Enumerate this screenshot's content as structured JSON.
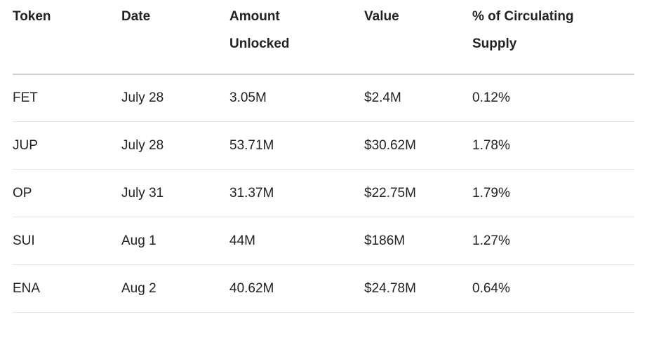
{
  "table": {
    "headers": [
      "Token",
      "Date",
      "Amount Unlocked",
      "Value",
      "% of Circulating Supply"
    ],
    "rows": [
      [
        "FET",
        "July 28",
        "3.05M",
        "$2.4M",
        "0.12%"
      ],
      [
        "JUP",
        "July 28",
        "53.71M",
        "$30.62M",
        "1.78%"
      ],
      [
        "OP",
        "July 31",
        "31.37M",
        "$22.75M",
        "1.79%"
      ],
      [
        "SUI",
        "Aug 1",
        "44M",
        "$186M",
        "1.27%"
      ],
      [
        "ENA",
        "Aug 2",
        "40.62M",
        "$24.78M",
        "0.64%"
      ]
    ]
  },
  "colors": {
    "text": "#222222",
    "header_rule": "#cfcfcf",
    "row_rule": "#e3e3e3",
    "background": "#ffffff"
  }
}
